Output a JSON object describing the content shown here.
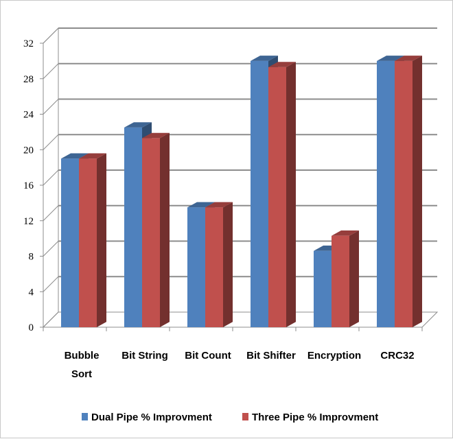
{
  "chart_data": {
    "type": "bar",
    "title": "",
    "xlabel": "",
    "ylabel": "",
    "categories": [
      [
        "Bubble",
        "Sort"
      ],
      [
        "Bit String"
      ],
      [
        "Bit Count"
      ],
      [
        "Bit Shifter"
      ],
      [
        "Encryption"
      ],
      [
        "CRC32"
      ]
    ],
    "series": [
      {
        "name": "Dual Pipe % Improvment",
        "values": [
          19,
          22.5,
          13.5,
          30,
          8.6,
          30
        ],
        "color": "#4f81bd"
      },
      {
        "name": "Three Pipe % Improvment",
        "values": [
          19,
          21.3,
          13.5,
          29.3,
          10.3,
          30
        ],
        "color": "#c0504d"
      }
    ],
    "ylim": [
      0,
      32
    ],
    "yticks": [
      0,
      4,
      8,
      12,
      16,
      20,
      24,
      28,
      32
    ],
    "grid": true,
    "three_d": true,
    "legend_position": "bottom"
  }
}
